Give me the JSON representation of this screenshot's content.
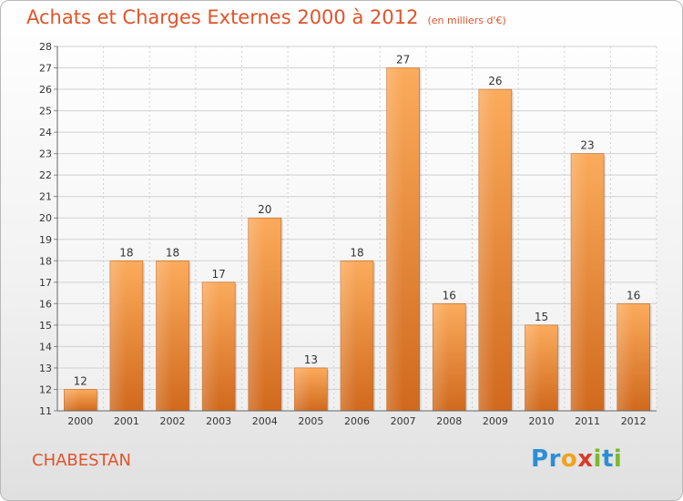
{
  "title": "Achats et Charges Externes 2000 à 2012",
  "unit": "(en milliers d'€)",
  "commune": "CHABESTAN",
  "logo": {
    "letters": [
      "P",
      "r",
      "o",
      "x",
      "i",
      "t",
      "i"
    ],
    "colors": [
      "#2b8fd6",
      "#2b8fd6",
      "#f0a21c",
      "#d93b2b",
      "#7cb82f",
      "#2b8fd6",
      "#7cb82f"
    ]
  },
  "colors": {
    "accent": "#e0542a",
    "bar_light": "#f9a555",
    "bar_dark": "#d2691e",
    "grid": "#d0d0d0"
  },
  "chart_data": {
    "type": "bar",
    "title": "Achats et Charges Externes 2000 à 2012",
    "subtitle": "(en milliers d'€)",
    "categories": [
      "2000",
      "2001",
      "2002",
      "2003",
      "2004",
      "2005",
      "2006",
      "2007",
      "2008",
      "2009",
      "2010",
      "2011",
      "2012"
    ],
    "values": [
      12,
      18,
      18,
      17,
      20,
      13,
      18,
      27,
      16,
      26,
      15,
      23,
      16
    ],
    "ylim": [
      11,
      28
    ],
    "yticks": [
      11,
      12,
      13,
      14,
      15,
      16,
      17,
      18,
      19,
      20,
      21,
      22,
      23,
      24,
      25,
      26,
      27,
      28
    ],
    "grid": true,
    "data_labels": true
  }
}
